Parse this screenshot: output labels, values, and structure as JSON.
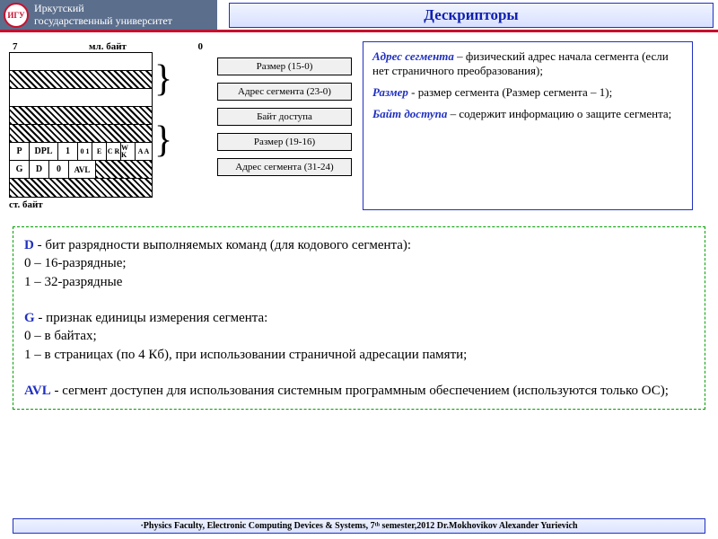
{
  "header": {
    "university_line1": "Иркутский",
    "university_line2": "государственный университет",
    "title": "Дескрипторы"
  },
  "diagram": {
    "bit_left": "7",
    "bit_right": "0",
    "ml_bait": "мл. байт",
    "st_bait": "ст. байт",
    "row_pdl": [
      "P",
      "DPL",
      "1",
      "0\n1",
      "E",
      "C\nR",
      "W\nK",
      "A\nA"
    ],
    "row_gd": [
      "G",
      "D",
      "0",
      "AVL",
      ""
    ],
    "fields": [
      "Размер (15-0)",
      "Адрес сегмента (23-0)",
      "Байт доступа",
      "Размер (19-16)",
      "Адрес сегмента (31-24)"
    ]
  },
  "descbox": {
    "p1_term": "Адрес сегмента",
    "p1_rest": " – физический адрес начала сегмента (если нет страничного преобразования);",
    "p2_term": "Размер",
    "p2_rest": "  -  размер сегмента (Размер сегмента  – 1);",
    "p3_term": "Байт доступа",
    "p3_rest": " – содержит информацию о защите сегмента;"
  },
  "green": {
    "d_key": "D",
    "d_text": "  - бит разрядности выполняемых команд (для кодового сегмента):",
    "d_l0": "0 – 16-разрядные;",
    "d_l1": "1 – 32-разрядные",
    "g_key": "G",
    "g_text": "   - признак единицы измерения сегмента:",
    "g_l0": "0 – в байтах;",
    "g_l1": "1 – в страницах (по 4 Кб), при использовании страничной адресации памяти;",
    "avl_key": "AVL",
    "avl_text": "   -   сегмент доступен для использования системным программным обеспечением (используются только ОС);"
  },
  "footer": "·Physics Faculty, Electronic Computing Devices & Systems, 7ᵗʰ semester,2012 Dr.Mokhovikov Alexander Yurievich"
}
